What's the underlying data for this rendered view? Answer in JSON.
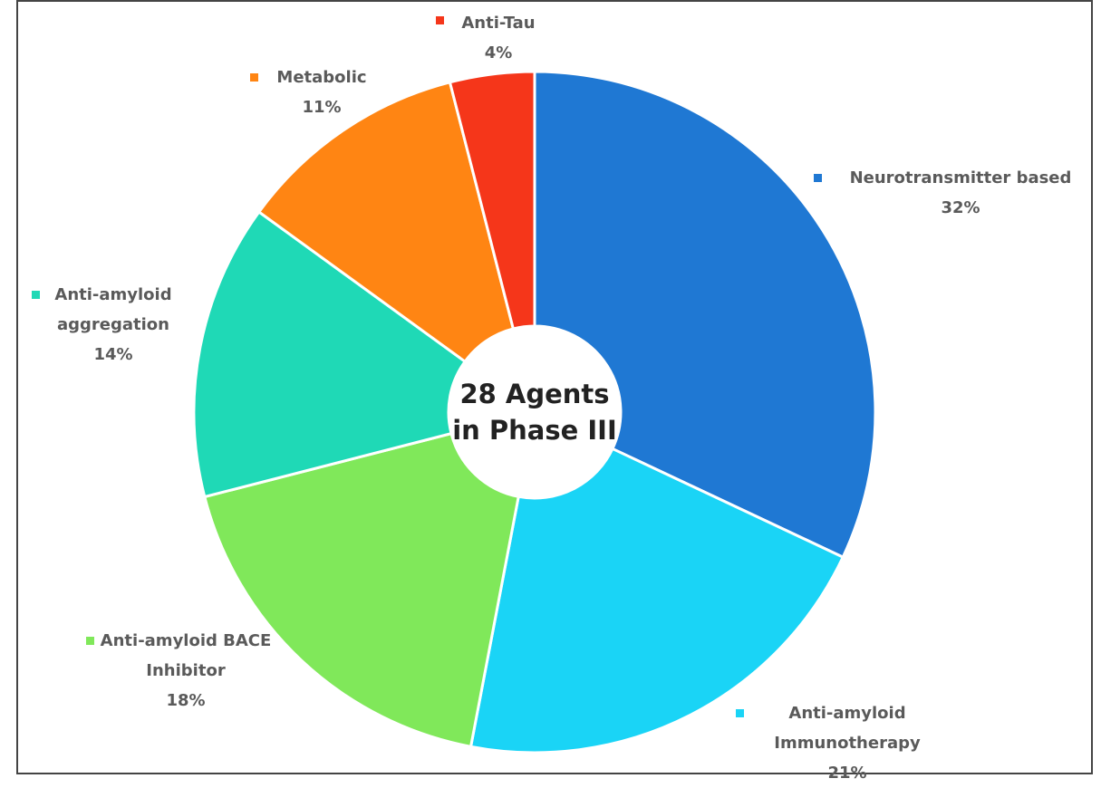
{
  "chart_data": {
    "type": "donut",
    "center_text": [
      "28 Agents",
      "in Phase III"
    ],
    "categories": [
      "Neurotransmitter based",
      "Anti-amyloid Immunotherapy",
      "Anti-amyloid BACE Inhibitor",
      "Anti-amyloid aggregation",
      "Metabolic",
      "Anti-Tau"
    ],
    "values": [
      32,
      21,
      18,
      14,
      11,
      4
    ],
    "value_labels": [
      "32%",
      "21%",
      "18%",
      "14%",
      "11%",
      "4%"
    ],
    "colors": [
      "#1f78d3",
      "#1ad4f6",
      "#80e85a",
      "#1fd9b6",
      "#ff8513",
      "#f5361a"
    ]
  }
}
